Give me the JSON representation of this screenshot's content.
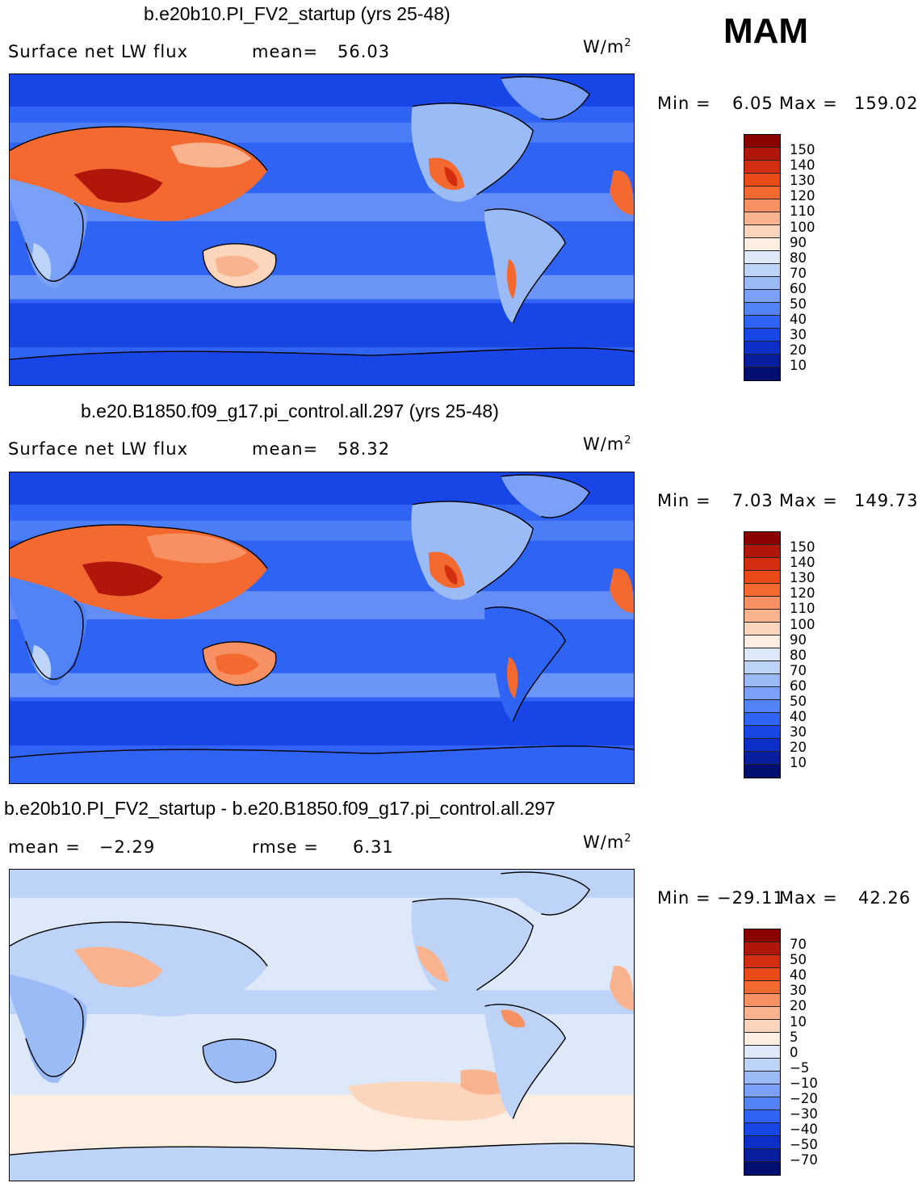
{
  "season": "MAM",
  "panels": [
    {
      "title": "b.e20b10.PI_FV2_startup (yrs 25-48)",
      "stat_left": "Surface net LW flux",
      "stat_mid_label": "mean=",
      "stat_mid_value": "56.03",
      "units_base": "W/m",
      "units_exp": "2",
      "min_label": "Min =",
      "min_value": "6.05",
      "max_label": "Max =",
      "max_value": "159.02",
      "colorbar_labels": [
        "150",
        "140",
        "130",
        "120",
        "110",
        "100",
        "90",
        "80",
        "70",
        "60",
        "50",
        "40",
        "30",
        "20",
        "10"
      ]
    },
    {
      "title": "b.e20.B1850.f09_g17.pi_control.all.297 (yrs 25-48)",
      "stat_left": "Surface net LW flux",
      "stat_mid_label": "mean=",
      "stat_mid_value": "58.32",
      "units_base": "W/m",
      "units_exp": "2",
      "min_label": "Min =",
      "min_value": "7.03",
      "max_label": "Max =",
      "max_value": "149.73",
      "colorbar_labels": [
        "150",
        "140",
        "130",
        "120",
        "110",
        "100",
        "90",
        "80",
        "70",
        "60",
        "50",
        "40",
        "30",
        "20",
        "10"
      ]
    },
    {
      "title": "b.e20b10.PI_FV2_startup - b.e20.B1850.f09_g17.pi_control.all.297",
      "stat_left": "mean =   −2.29",
      "stat_mid_label": "rmse =",
      "stat_mid_value": "6.31",
      "units_base": "W/m",
      "units_exp": "2",
      "min_label": "Min =",
      "min_value": "−29.11",
      "max_label": "Max =",
      "max_value": "42.26",
      "colorbar_labels": [
        "70",
        "50",
        "40",
        "30",
        "20",
        "10",
        "5",
        "0",
        "−5",
        "−10",
        "−20",
        "−30",
        "−40",
        "−50",
        "−70"
      ]
    }
  ],
  "palette_abs": [
    "#8b0000",
    "#b0170a",
    "#d32e10",
    "#ea4a18",
    "#f3692f",
    "#f79062",
    "#f9b48f",
    "#fcd5bd",
    "#fdeee2",
    "#dde9f8",
    "#bdd3f8",
    "#9bbbf7",
    "#7aa1f7",
    "#5283f6",
    "#2f63f3",
    "#1845e6",
    "#0e2fc7",
    "#071e9e",
    "#020f70"
  ],
  "palette_diff": [
    "#8b0000",
    "#b0170a",
    "#d32e10",
    "#ea4a18",
    "#f3692f",
    "#f79062",
    "#f9b48f",
    "#fcd5bd",
    "#fdeee2",
    "#dde9f8",
    "#bdd3f8",
    "#9bbbf7",
    "#7aa1f7",
    "#5283f6",
    "#2f63f3",
    "#1845e6",
    "#0e2fc7",
    "#071e9e",
    "#020f70"
  ]
}
